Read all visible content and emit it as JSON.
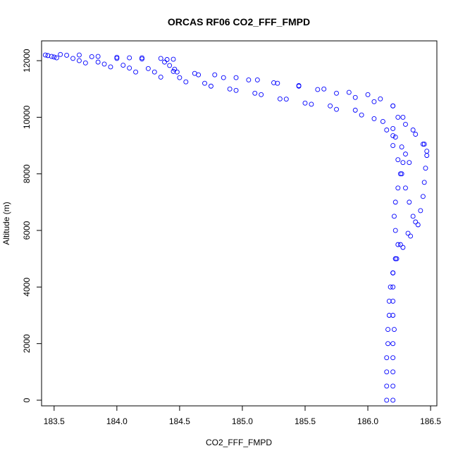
{
  "chart_data": {
    "type": "scatter",
    "title": "ORCAS RF06 CO2_FFF_FMPD",
    "xlabel": "CO2_FFF_FMPD",
    "ylabel": "Altitude (m)",
    "xlim": [
      183.4,
      186.55
    ],
    "ylim": [
      -200,
      12700
    ],
    "x_ticks": [
      183.5,
      184.0,
      184.5,
      185.0,
      185.5,
      186.0,
      186.5
    ],
    "x_tick_labels": [
      "183.5",
      "184.0",
      "184.5",
      "185.0",
      "185.5",
      "186.0",
      "186.5"
    ],
    "y_ticks": [
      0,
      2000,
      4000,
      6000,
      8000,
      10000,
      12000
    ],
    "y_tick_labels": [
      "0",
      "2000",
      "4000",
      "6000",
      "8000",
      "10000",
      "12000"
    ],
    "marker": "open-circle",
    "color": "#0000ff",
    "grid": false,
    "series": [
      {
        "points": [
          [
            183.43,
            12200
          ],
          [
            183.55,
            12220
          ],
          [
            183.7,
            12200
          ],
          [
            183.85,
            12150
          ],
          [
            184.0,
            12120
          ],
          [
            184.1,
            12100
          ],
          [
            184.2,
            12100
          ],
          [
            184.35,
            12080
          ],
          [
            184.45,
            12050
          ],
          [
            183.45,
            12180
          ],
          [
            183.6,
            12190
          ],
          [
            183.8,
            12140
          ],
          [
            184.0,
            12080
          ],
          [
            184.2,
            12060
          ],
          [
            184.4,
            12040
          ],
          [
            184.38,
            11950
          ],
          [
            184.42,
            11830
          ],
          [
            184.46,
            11700
          ],
          [
            184.48,
            11600
          ],
          [
            184.62,
            11550
          ],
          [
            184.78,
            11500
          ],
          [
            184.95,
            11400
          ],
          [
            185.12,
            11320
          ],
          [
            185.28,
            11200
          ],
          [
            185.45,
            11100
          ],
          [
            185.6,
            10980
          ],
          [
            185.75,
            10850
          ],
          [
            185.9,
            10700
          ],
          [
            186.05,
            10550
          ],
          [
            186.2,
            10400
          ],
          [
            186.28,
            10000
          ],
          [
            186.36,
            9550
          ],
          [
            186.44,
            9050
          ],
          [
            186.47,
            8800
          ],
          [
            183.48,
            12150
          ],
          [
            183.65,
            12080
          ],
          [
            183.85,
            11950
          ],
          [
            184.05,
            11840
          ],
          [
            184.25,
            11720
          ],
          [
            184.45,
            11620
          ],
          [
            184.65,
            11500
          ],
          [
            184.85,
            11400
          ],
          [
            185.05,
            11320
          ],
          [
            185.25,
            11220
          ],
          [
            185.45,
            11120
          ],
          [
            185.65,
            11000
          ],
          [
            185.85,
            10880
          ],
          [
            186.0,
            10800
          ],
          [
            186.1,
            10650
          ],
          [
            186.2,
            10400
          ],
          [
            186.24,
            10000
          ],
          [
            186.3,
            9750
          ],
          [
            186.38,
            9400
          ],
          [
            186.45,
            9050
          ],
          [
            183.5,
            12130
          ],
          [
            183.7,
            12000
          ],
          [
            183.9,
            11880
          ],
          [
            184.1,
            11740
          ],
          [
            184.3,
            11600
          ],
          [
            184.5,
            11400
          ],
          [
            184.7,
            11200
          ],
          [
            184.9,
            11000
          ],
          [
            185.1,
            10850
          ],
          [
            185.3,
            10650
          ],
          [
            185.5,
            10500
          ],
          [
            185.7,
            10400
          ],
          [
            185.9,
            10250
          ],
          [
            186.05,
            9950
          ],
          [
            186.15,
            9550
          ],
          [
            186.2,
            9350
          ],
          [
            186.27,
            8950
          ],
          [
            186.3,
            8700
          ],
          [
            186.33,
            8400
          ],
          [
            183.52,
            12100
          ],
          [
            183.75,
            11920
          ],
          [
            183.95,
            11780
          ],
          [
            184.15,
            11600
          ],
          [
            184.35,
            11420
          ],
          [
            184.55,
            11250
          ],
          [
            184.75,
            11100
          ],
          [
            184.95,
            10950
          ],
          [
            185.15,
            10800
          ],
          [
            185.35,
            10640
          ],
          [
            185.55,
            10460
          ],
          [
            185.75,
            10280
          ],
          [
            185.95,
            10080
          ],
          [
            186.12,
            9850
          ],
          [
            186.2,
            9600
          ],
          [
            186.22,
            9300
          ],
          [
            186.2,
            9000
          ],
          [
            186.24,
            8500
          ],
          [
            186.27,
            8000
          ],
          [
            186.3,
            7500
          ],
          [
            186.33,
            7000
          ],
          [
            186.36,
            6500
          ],
          [
            186.4,
            6200
          ],
          [
            186.34,
            5800
          ],
          [
            186.28,
            5400
          ],
          [
            186.23,
            5000
          ],
          [
            186.2,
            4500
          ],
          [
            186.2,
            4000
          ],
          [
            186.2,
            3500
          ],
          [
            186.2,
            3000
          ],
          [
            186.21,
            2500
          ],
          [
            186.2,
            2000
          ],
          [
            186.2,
            1500
          ],
          [
            186.2,
            1000
          ],
          [
            186.2,
            500
          ],
          [
            186.2,
            0
          ],
          [
            186.28,
            8400
          ],
          [
            186.26,
            8000
          ],
          [
            186.24,
            7500
          ],
          [
            186.22,
            7000
          ],
          [
            186.21,
            6500
          ],
          [
            186.22,
            6000
          ],
          [
            186.24,
            5500
          ],
          [
            186.22,
            5000
          ],
          [
            186.2,
            4500
          ],
          [
            186.47,
            8650
          ],
          [
            186.46,
            8200
          ],
          [
            186.45,
            7700
          ],
          [
            186.44,
            7200
          ],
          [
            186.42,
            6700
          ],
          [
            186.38,
            6300
          ],
          [
            186.32,
            5900
          ],
          [
            186.26,
            5500
          ],
          [
            186.22,
            5000
          ],
          [
            186.2,
            4500
          ],
          [
            186.18,
            4000
          ],
          [
            186.17,
            3500
          ],
          [
            186.17,
            3000
          ],
          [
            186.16,
            2500
          ],
          [
            186.16,
            2000
          ],
          [
            186.15,
            1500
          ],
          [
            186.15,
            1000
          ],
          [
            186.15,
            500
          ],
          [
            186.15,
            0
          ]
        ]
      }
    ]
  }
}
